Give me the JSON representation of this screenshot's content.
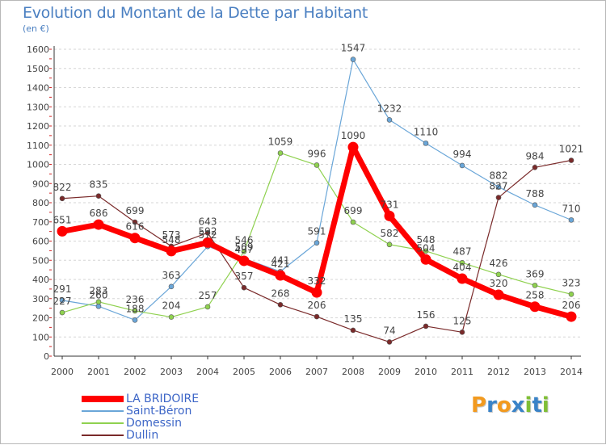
{
  "title": "Evolution du Montant de la Dette par Habitant",
  "subtitle": "(en €)",
  "logo": {
    "letters": [
      "P",
      "r",
      "o",
      "x",
      "i",
      "t",
      "i"
    ],
    "colors": [
      "#f29a1f",
      "#3a83c7",
      "#f29a1f",
      "#3a83c7",
      "#7fbe35",
      "#3a83c7",
      "#7fbe35"
    ]
  },
  "chart_data": {
    "type": "line",
    "title": "Evolution du Montant de la Dette par Habitant",
    "ylabel": "(en €)",
    "xlabel": "",
    "x": [
      "2000",
      "2001",
      "2002",
      "2003",
      "2004",
      "2005",
      "2006",
      "2007",
      "2008",
      "2009",
      "2010",
      "2011",
      "2012",
      "2013",
      "2014"
    ],
    "ylim": [
      0,
      1600
    ],
    "yticks": [
      0,
      100,
      200,
      300,
      400,
      500,
      600,
      700,
      800,
      900,
      1000,
      1100,
      1200,
      1300,
      1400,
      1500,
      1600
    ],
    "grid": "horizontal",
    "legend": "bottom-left",
    "series": [
      {
        "name": "LA BRIDOIRE",
        "color": "#ff0000",
        "width": 7,
        "values": [
          651,
          686,
          616,
          548,
          592,
          497,
          421,
          332,
          1090,
          731,
          504,
          404,
          320,
          258,
          206
        ]
      },
      {
        "name": "Saint-Béron",
        "color": "#6aa6d8",
        "width": 1.2,
        "values": [
          291,
          260,
          188,
          363,
          572,
          509,
          441,
          591,
          1547,
          1232,
          1110,
          994,
          882,
          788,
          710
        ]
      },
      {
        "name": "Domessin",
        "color": "#8fd14f",
        "width": 1.2,
        "values": [
          227,
          283,
          236,
          204,
          257,
          546,
          1059,
          996,
          699,
          582,
          548,
          487,
          426,
          369,
          323
        ]
      },
      {
        "name": "Dullin",
        "color": "#7a2a2a",
        "width": 1.2,
        "values": [
          822,
          835,
          699,
          573,
          643,
          357,
          268,
          206,
          135,
          74,
          156,
          125,
          827,
          984,
          1021
        ]
      }
    ]
  }
}
